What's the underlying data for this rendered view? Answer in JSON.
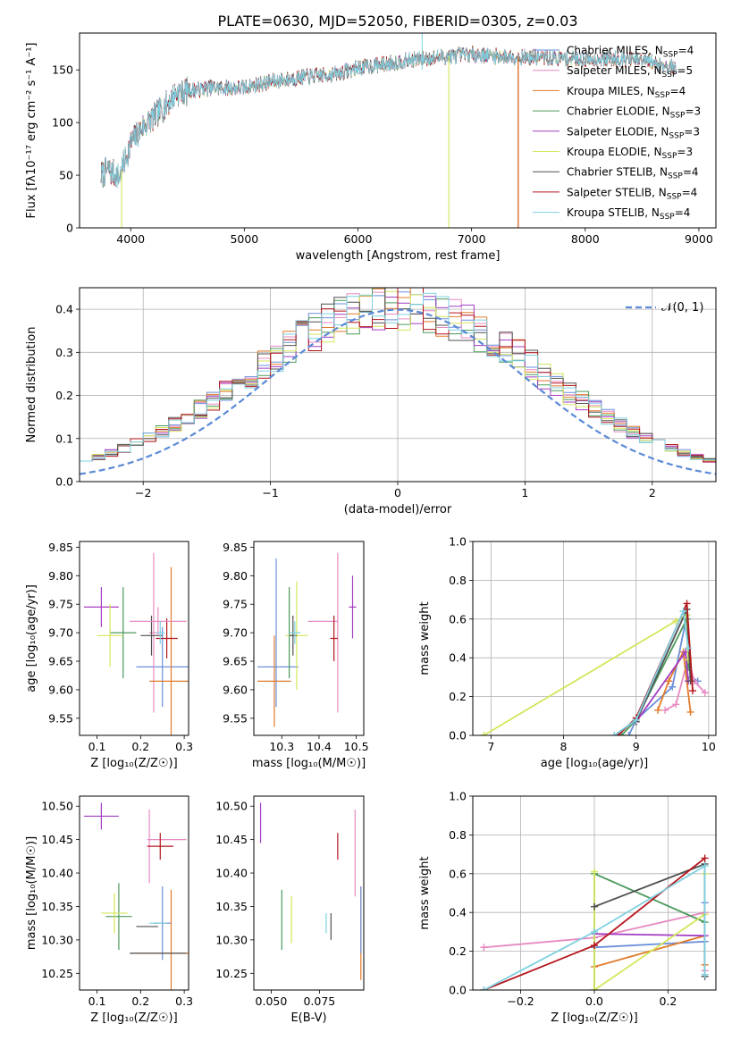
{
  "figure": {
    "title": "PLATE=0630, MJD=52050, FIBERID=0305, z=0.03"
  },
  "chart_data": [
    {
      "id": "spectrum",
      "type": "line",
      "xlabel": "wavelength [Angstrom, rest frame]",
      "ylabel": "Flux [fλ10⁻¹⁷ erg cm⁻² s⁻¹ A⁻¹]",
      "xlim": [
        3550,
        9150
      ],
      "ylim": [
        0,
        185
      ],
      "xticks": [
        4000,
        5000,
        6000,
        7000,
        8000,
        9000
      ],
      "yticks": [
        0,
        50,
        100,
        150
      ],
      "grid": false,
      "legend_position": "right",
      "continuum": {
        "wavelength": [
          3740,
          3800,
          3900,
          4000,
          4100,
          4200,
          4300,
          4400,
          4500,
          4700,
          5000,
          5200,
          5500,
          5800,
          6000,
          6200,
          6500,
          6800,
          7000,
          7200,
          7500,
          7800,
          8000,
          8300,
          8600,
          8800
        ],
        "flux": [
          50,
          55,
          48,
          80,
          95,
          105,
          115,
          128,
          130,
          133,
          133,
          138,
          143,
          146,
          152,
          155,
          160,
          163,
          165,
          163,
          162,
          161,
          160,
          161,
          157,
          152
        ]
      },
      "series": [
        {
          "name": "Chabrier MILES, N_SSP=4",
          "legend": "Chabrier MILES, N",
          "sub": "SSP",
          "eq": "=4",
          "color": "#6a8fdc"
        },
        {
          "name": "Salpeter MILES, N_SSP=5",
          "legend": "Salpeter MILES, N",
          "sub": "SSP",
          "eq": "=5",
          "color": "#e68ac1"
        },
        {
          "name": "Kroupa MILES, N_SSP=4",
          "legend": "Kroupa MILES, N",
          "sub": "SSP",
          "eq": "=4",
          "color": "#e07b2a"
        },
        {
          "name": "Chabrier ELODIE, N_SSP=3",
          "legend": "Chabrier ELODIE, N",
          "sub": "SSP",
          "eq": "=3",
          "color": "#4c9a5c"
        },
        {
          "name": "Salpeter ELODIE, N_SSP=3",
          "legend": "Salpeter ELODIE, N",
          "sub": "SSP",
          "eq": "=3",
          "color": "#a43ec2"
        },
        {
          "name": "Kroupa ELODIE, N_SSP=3",
          "legend": "Kroupa ELODIE, N",
          "sub": "SSP",
          "eq": "=3",
          "color": "#d5e65a"
        },
        {
          "name": "Chabrier STELIB, N_SSP=4",
          "legend": "Chabrier STELIB, N",
          "sub": "SSP",
          "eq": "=4",
          "color": "#505050"
        },
        {
          "name": "Salpeter STELIB, N_SSP=4",
          "legend": "Salpeter STELIB, N",
          "sub": "SSP",
          "eq": "=4",
          "color": "#b5141c"
        },
        {
          "name": "Kroupa STELIB, N_SSP=4",
          "legend": "Kroupa STELIB, N",
          "sub": "SSP",
          "eq": "=4",
          "color": "#7fd0e0"
        }
      ],
      "drops": [
        {
          "x": 3920,
          "color": "#d5e65a"
        },
        {
          "x": 6800,
          "color": "#d5e65a"
        },
        {
          "x": 7410,
          "color": "#b5141c"
        },
        {
          "x": 7410,
          "color": "#e07b2a"
        }
      ]
    },
    {
      "id": "residuals",
      "type": "histogram",
      "xlabel": "(data-model)/error",
      "ylabel": "Normed distribution",
      "xlim": [
        -2.5,
        2.5
      ],
      "ylim": [
        0,
        0.45
      ],
      "xticks": [
        -2,
        -1,
        0,
        1,
        2
      ],
      "yticks": [
        0.0,
        0.1,
        0.2,
        0.3,
        0.4
      ],
      "grid": true,
      "legend_position": "top-right",
      "bins": {
        "start": -2.5,
        "width": 0.1,
        "count": 50
      },
      "gaussian_label": "𝒩(0, 1)",
      "gaussian_color": "#5b8ad6"
    },
    {
      "id": "age-vs-Z",
      "type": "errorbar",
      "xlabel": "Z [log₁₀(Z/Z☉)]",
      "ylabel": "age  [log₁₀(age/yr)]",
      "xlim": [
        0.06,
        0.31
      ],
      "ylim": [
        9.52,
        9.86
      ],
      "xticks": [
        0.1,
        0.2,
        0.3
      ],
      "yticks": [
        9.55,
        9.6,
        9.65,
        9.7,
        9.75,
        9.8,
        9.85
      ],
      "points": [
        {
          "x": 0.25,
          "y": 9.64,
          "xerr": 0.06,
          "yerr": 0.07,
          "color": "#6a8fdc"
        },
        {
          "x": 0.23,
          "y": 9.7,
          "xerr": 0.01,
          "yerr": 0.14,
          "color": "#e68ac1"
        },
        {
          "x": 0.27,
          "y": 9.615,
          "xerr": 0.05,
          "yerr": 0.2,
          "color": "#e07b2a"
        },
        {
          "x": 0.16,
          "y": 9.7,
          "xerr": 0.03,
          "yerr": 0.08,
          "color": "#4c9a5c"
        },
        {
          "x": 0.11,
          "y": 9.745,
          "xerr": 0.04,
          "yerr": 0.035,
          "color": "#a43ec2"
        },
        {
          "x": 0.13,
          "y": 9.695,
          "xerr": 0.03,
          "yerr": 0.055,
          "color": "#d5e65a"
        },
        {
          "x": 0.225,
          "y": 9.695,
          "xerr": 0.025,
          "yerr": 0.035,
          "color": "#505050"
        },
        {
          "x": 0.26,
          "y": 9.69,
          "xerr": 0.025,
          "yerr": 0.035,
          "color": "#b5141c"
        },
        {
          "x": 0.24,
          "y": 9.72,
          "xerr": 0.065,
          "yerr": 0.025,
          "color": "#e68ac1"
        },
        {
          "x": 0.245,
          "y": 9.7,
          "xerr": 0.01,
          "yerr": 0.02,
          "color": "#7fd0e0"
        }
      ]
    },
    {
      "id": "age-vs-mass",
      "type": "errorbar",
      "xlabel": "mass [log₁₀(M/M☉)]",
      "ylabel": "",
      "xlim": [
        10.225,
        10.52
      ],
      "ylim": [
        9.52,
        9.86
      ],
      "xticks": [
        10.3,
        10.4,
        10.5
      ],
      "yticks": [
        9.55,
        9.6,
        9.65,
        9.7,
        9.75,
        9.8,
        9.85
      ],
      "points": [
        {
          "x": 10.29,
          "y": 9.64,
          "xerr": 0.055,
          "yerr": 0.0,
          "color": "#6a8fdc"
        },
        {
          "x": 10.285,
          "y": 9.7,
          "xerr": 0.0,
          "yerr": 0.13,
          "color": "#6a8fdc"
        },
        {
          "x": 10.45,
          "y": 9.7,
          "xerr": 0.0,
          "yerr": 0.14,
          "color": "#e68ac1"
        },
        {
          "x": 10.41,
          "y": 9.72,
          "xerr": 0.04,
          "yerr": 0.0,
          "color": "#e68ac1"
        },
        {
          "x": 10.28,
          "y": 9.615,
          "xerr": 0.045,
          "yerr": 0.08,
          "color": "#e07b2a"
        },
        {
          "x": 10.32,
          "y": 9.7,
          "xerr": 0.0,
          "yerr": 0.08,
          "color": "#4c9a5c"
        },
        {
          "x": 10.49,
          "y": 9.745,
          "xerr": 0.01,
          "yerr": 0.055,
          "color": "#a43ec2"
        },
        {
          "x": 10.34,
          "y": 9.695,
          "xerr": 0.03,
          "yerr": 0.095,
          "color": "#d5e65a"
        },
        {
          "x": 10.33,
          "y": 9.695,
          "xerr": 0.01,
          "yerr": 0.035,
          "color": "#505050"
        },
        {
          "x": 10.44,
          "y": 9.69,
          "xerr": 0.01,
          "yerr": 0.04,
          "color": "#b5141c"
        },
        {
          "x": 10.335,
          "y": 9.7,
          "xerr": 0.015,
          "yerr": 0.02,
          "color": "#7fd0e0"
        }
      ]
    },
    {
      "id": "mass-weight-vs-age",
      "type": "line",
      "xlabel": "age  [log₁₀(age/yr)]",
      "ylabel": "mass weight",
      "xlim": [
        6.75,
        10.1
      ],
      "ylim": [
        0.0,
        1.0
      ],
      "xticks": [
        7,
        8,
        9,
        10
      ],
      "yticks": [
        0.0,
        0.2,
        0.4,
        0.6,
        0.8,
        1.0
      ],
      "grid": true,
      "series": [
        {
          "color": "#6a8fdc",
          "x": [
            8.9,
            9.0,
            9.5,
            9.7,
            9.75,
            9.85
          ],
          "y": [
            0.0,
            0.08,
            0.25,
            0.62,
            0.3,
            0.28
          ]
        },
        {
          "color": "#e68ac1",
          "x": [
            9.4,
            9.55,
            9.72,
            9.8,
            9.95
          ],
          "y": [
            0.13,
            0.16,
            0.4,
            0.28,
            0.22
          ]
        },
        {
          "color": "#e07b2a",
          "x": [
            9.3,
            9.45,
            9.65,
            9.75
          ],
          "y": [
            0.13,
            0.28,
            0.43,
            0.12
          ]
        },
        {
          "color": "#4c9a5c",
          "x": [
            8.8,
            9.0,
            9.7,
            9.72
          ],
          "y": [
            0.0,
            0.08,
            0.6,
            0.35
          ]
        },
        {
          "color": "#a43ec2",
          "x": [
            9.0,
            9.68,
            9.72
          ],
          "y": [
            0.07,
            0.43,
            0.28
          ]
        },
        {
          "color": "#d5e65a",
          "x": [
            6.9,
            9.55,
            9.7,
            9.72
          ],
          "y": [
            0.0,
            0.59,
            0.62,
            0.39
          ]
        },
        {
          "color": "#505050",
          "x": [
            9.0,
            9.7,
            9.75
          ],
          "y": [
            0.07,
            0.65,
            0.28
          ]
        },
        {
          "color": "#b5141c",
          "x": [
            8.75,
            9.0,
            9.7,
            9.78
          ],
          "y": [
            0.0,
            0.09,
            0.68,
            0.23
          ]
        },
        {
          "color": "#7fd0e0",
          "x": [
            8.7,
            9.0,
            9.65,
            9.72
          ],
          "y": [
            0.0,
            0.08,
            0.64,
            0.45
          ]
        }
      ]
    },
    {
      "id": "mass-vs-Z",
      "type": "errorbar",
      "xlabel": "Z [log₁₀(Z/Z☉)]",
      "ylabel": "mass [log₁₀(M/M☉)]",
      "xlim": [
        0.06,
        0.31
      ],
      "ylim": [
        10.225,
        10.515
      ],
      "xticks": [
        0.1,
        0.2,
        0.3
      ],
      "yticks": [
        10.25,
        10.3,
        10.35,
        10.4,
        10.45,
        10.5
      ],
      "points": [
        {
          "x": 0.25,
          "y": 10.325,
          "xerr": 0.02,
          "yerr": 0.055,
          "color": "#6a8fdc"
        },
        {
          "x": 0.22,
          "y": 10.44,
          "xerr": 0.0,
          "yerr": 0.055,
          "color": "#e68ac1"
        },
        {
          "x": 0.26,
          "y": 10.45,
          "xerr": 0.045,
          "yerr": 0.0,
          "color": "#e68ac1"
        },
        {
          "x": 0.27,
          "y": 10.28,
          "xerr": 0.09,
          "yerr": 0.095,
          "color": "#e07b2a"
        },
        {
          "x": 0.15,
          "y": 10.335,
          "xerr": 0.03,
          "yerr": 0.05,
          "color": "#4c9a5c"
        },
        {
          "x": 0.11,
          "y": 10.485,
          "xerr": 0.04,
          "yerr": 0.02,
          "color": "#a43ec2"
        },
        {
          "x": 0.14,
          "y": 10.34,
          "xerr": 0.03,
          "yerr": 0.03,
          "color": "#d5e65a"
        },
        {
          "x": 0.215,
          "y": 10.32,
          "xerr": 0.025,
          "yerr": 0.0,
          "color": "#505050"
        },
        {
          "x": 0.245,
          "y": 10.44,
          "xerr": 0.03,
          "yerr": 0.02,
          "color": "#b5141c"
        },
        {
          "x": 0.24,
          "y": 10.325,
          "xerr": 0.02,
          "yerr": 0.0,
          "color": "#7fd0e0"
        },
        {
          "x": 0.24,
          "y": 10.28,
          "xerr": 0.065,
          "yerr": 0.0,
          "color": "#505050"
        }
      ]
    },
    {
      "id": "mass-vs-EBV",
      "type": "errorbar",
      "xlabel": "E(B-V)",
      "ylabel": "",
      "xlim": [
        0.041,
        0.098
      ],
      "ylim": [
        10.225,
        10.515
      ],
      "xticks": [
        0.05,
        0.075
      ],
      "yticks": [
        10.25,
        10.3,
        10.35,
        10.4,
        10.45,
        10.5
      ],
      "points": [
        {
          "x": 0.0445,
          "y": 10.475,
          "xerr": 0.0,
          "yerr": 0.03,
          "color": "#a43ec2"
        },
        {
          "x": 0.0555,
          "y": 10.33,
          "xerr": 0.0,
          "yerr": 0.045,
          "color": "#4c9a5c"
        },
        {
          "x": 0.0605,
          "y": 10.33,
          "xerr": 0.0,
          "yerr": 0.035,
          "color": "#d5e65a"
        },
        {
          "x": 0.0785,
          "y": 10.325,
          "xerr": 0.0,
          "yerr": 0.015,
          "color": "#7fd0e0"
        },
        {
          "x": 0.081,
          "y": 10.32,
          "xerr": 0.0,
          "yerr": 0.02,
          "color": "#505050"
        },
        {
          "x": 0.0845,
          "y": 10.44,
          "xerr": 0.0,
          "yerr": 0.02,
          "color": "#b5141c"
        },
        {
          "x": 0.0935,
          "y": 10.43,
          "xerr": 0.0,
          "yerr": 0.065,
          "color": "#e68ac1"
        },
        {
          "x": 0.0965,
          "y": 10.31,
          "xerr": 0.0,
          "yerr": 0.07,
          "color": "#e07b2a"
        },
        {
          "x": 0.0965,
          "y": 10.33,
          "xerr": 0.0,
          "yerr": 0.05,
          "color": "#6a8fdc"
        }
      ]
    },
    {
      "id": "mass-weight-vs-Z",
      "type": "line",
      "xlabel": "Z [log₁₀(Z/Z☉)]",
      "ylabel": "mass weight",
      "xlim": [
        -0.33,
        0.33
      ],
      "ylim": [
        0.0,
        1.0
      ],
      "xticks": [
        -0.2,
        0.0,
        0.2
      ],
      "yticks": [
        0.0,
        0.2,
        0.4,
        0.6,
        0.8,
        1.0
      ],
      "grid": true,
      "series": [
        {
          "color": "#6a8fdc",
          "x": [
            0.0,
            0.3,
            0.3
          ],
          "y": [
            0.22,
            0.25,
            0.45
          ]
        },
        {
          "color": "#e68ac1",
          "x": [
            -0.3,
            0.0,
            0.3,
            0.3
          ],
          "y": [
            0.22,
            0.27,
            0.4,
            0.1
          ]
        },
        {
          "color": "#e07b2a",
          "x": [
            0.0,
            0.3,
            0.3
          ],
          "y": [
            0.12,
            0.28,
            0.13
          ]
        },
        {
          "color": "#4c9a5c",
          "x": [
            0.0,
            0.0,
            0.3
          ],
          "y": [
            0.0,
            0.6,
            0.35
          ]
        },
        {
          "color": "#a43ec2",
          "x": [
            0.0,
            0.3
          ],
          "y": [
            0.29,
            0.28
          ]
        },
        {
          "color": "#d5e65a",
          "x": [
            0.0,
            0.0,
            0.3,
            0.3
          ],
          "y": [
            0.61,
            0.0,
            0.39,
            0.6
          ]
        },
        {
          "color": "#505050",
          "x": [
            0.0,
            0.3,
            0.3
          ],
          "y": [
            0.43,
            0.65,
            0.07
          ]
        },
        {
          "color": "#b5141c",
          "x": [
            -0.3,
            0.0,
            0.3
          ],
          "y": [
            0.0,
            0.23,
            0.68
          ]
        },
        {
          "color": "#7fd0e0",
          "x": [
            -0.3,
            0.0,
            0.3,
            0.3
          ],
          "y": [
            0.0,
            0.3,
            0.64,
            0.08
          ]
        }
      ]
    }
  ]
}
